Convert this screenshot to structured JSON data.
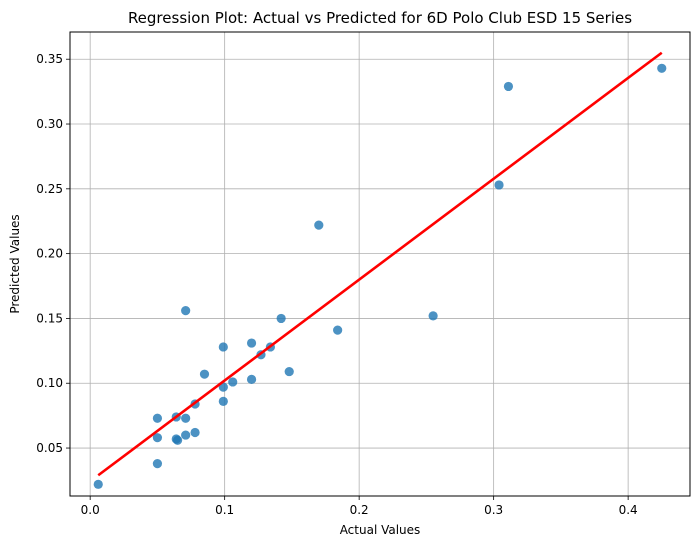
{
  "chart_data": {
    "type": "scatter",
    "title": "Regression Plot: Actual vs Predicted for 6D Polo Club ESD 15 Series",
    "xlabel": "Actual Values",
    "ylabel": "Predicted Values",
    "xlim": [
      -0.015,
      0.446
    ],
    "ylim": [
      0.013,
      0.371
    ],
    "xticks": [
      {
        "value": 0.0,
        "label": "0.0"
      },
      {
        "value": 0.1,
        "label": "0.1"
      },
      {
        "value": 0.2,
        "label": "0.2"
      },
      {
        "value": 0.3,
        "label": "0.3"
      },
      {
        "value": 0.4,
        "label": "0.4"
      }
    ],
    "yticks": [
      {
        "value": 0.05,
        "label": "0.05"
      },
      {
        "value": 0.1,
        "label": "0.10"
      },
      {
        "value": 0.15,
        "label": "0.15"
      },
      {
        "value": 0.2,
        "label": "0.20"
      },
      {
        "value": 0.25,
        "label": "0.25"
      },
      {
        "value": 0.3,
        "label": "0.30"
      },
      {
        "value": 0.35,
        "label": "0.35"
      }
    ],
    "grid": true,
    "colors": {
      "points": "#1f77b4",
      "regression_line": "#ff0000",
      "grid": "#b0b0b0"
    },
    "points": [
      {
        "x": 0.006,
        "y": 0.022
      },
      {
        "x": 0.05,
        "y": 0.073
      },
      {
        "x": 0.05,
        "y": 0.058
      },
      {
        "x": 0.05,
        "y": 0.038
      },
      {
        "x": 0.064,
        "y": 0.074
      },
      {
        "x": 0.064,
        "y": 0.057
      },
      {
        "x": 0.065,
        "y": 0.056
      },
      {
        "x": 0.071,
        "y": 0.156
      },
      {
        "x": 0.071,
        "y": 0.073
      },
      {
        "x": 0.071,
        "y": 0.06
      },
      {
        "x": 0.078,
        "y": 0.062
      },
      {
        "x": 0.078,
        "y": 0.084
      },
      {
        "x": 0.085,
        "y": 0.107
      },
      {
        "x": 0.099,
        "y": 0.128
      },
      {
        "x": 0.099,
        "y": 0.097
      },
      {
        "x": 0.099,
        "y": 0.086
      },
      {
        "x": 0.106,
        "y": 0.101
      },
      {
        "x": 0.12,
        "y": 0.131
      },
      {
        "x": 0.12,
        "y": 0.103
      },
      {
        "x": 0.127,
        "y": 0.122
      },
      {
        "x": 0.134,
        "y": 0.128
      },
      {
        "x": 0.142,
        "y": 0.15
      },
      {
        "x": 0.148,
        "y": 0.109
      },
      {
        "x": 0.17,
        "y": 0.222
      },
      {
        "x": 0.184,
        "y": 0.141
      },
      {
        "x": 0.255,
        "y": 0.152
      },
      {
        "x": 0.304,
        "y": 0.253
      },
      {
        "x": 0.311,
        "y": 0.329
      },
      {
        "x": 0.425,
        "y": 0.343
      }
    ],
    "regression_line": [
      {
        "x": 0.006,
        "y": 0.029
      },
      {
        "x": 0.425,
        "y": 0.355
      }
    ]
  }
}
